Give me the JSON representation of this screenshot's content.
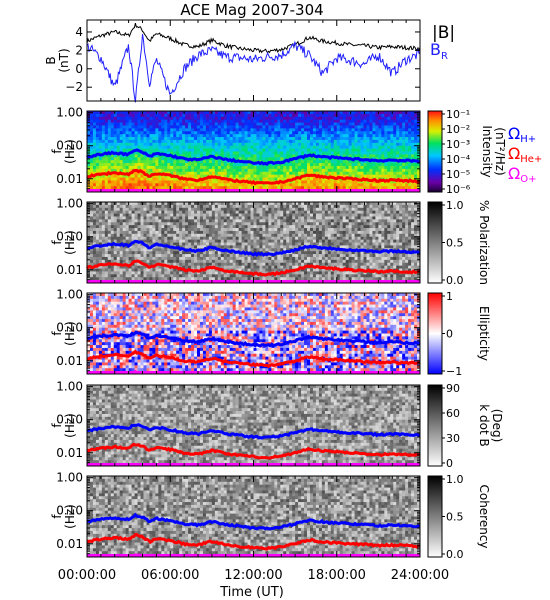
{
  "title": "ACE Mag 2007-304",
  "colors": {
    "B_total": "#000000",
    "B_R": "#2020ff",
    "H_plus": "#0000ff",
    "He_plus": "#ff0000",
    "O_plus": "#ff00ff"
  },
  "chart_data": [
    {
      "panel": "magnetic-field",
      "type": "line",
      "ylabel": "B\n(nT)",
      "y_ticks": [
        "4",
        "2",
        "0",
        "−2"
      ],
      "ylim": [
        -3.5,
        5.3
      ],
      "legend": [
        {
          "name": "|B|",
          "color": "#000000"
        },
        {
          "name": "BR",
          "color": "#2020ff"
        }
      ],
      "series": [
        {
          "name": "|B|",
          "x_hours": [
            0,
            1,
            2,
            3,
            3.5,
            4,
            4.5,
            5,
            6,
            7,
            8,
            9,
            10,
            11,
            12,
            13,
            14,
            15,
            16,
            17,
            18,
            19,
            20,
            21,
            22,
            23,
            24
          ],
          "values": [
            3.0,
            3.6,
            4.0,
            3.6,
            4.8,
            4.2,
            3.0,
            3.8,
            3.3,
            2.6,
            2.4,
            3.1,
            2.5,
            2.2,
            2.0,
            1.9,
            2.1,
            2.6,
            3.4,
            3.0,
            2.8,
            2.6,
            2.5,
            2.3,
            2.4,
            2.3,
            2.2
          ]
        },
        {
          "name": "BR",
          "x_hours": [
            0,
            1,
            2,
            3,
            3.5,
            4,
            4.5,
            5,
            6,
            7,
            8,
            9,
            10,
            11,
            12,
            13,
            14,
            15,
            16,
            17,
            18,
            19,
            20,
            21,
            22,
            23,
            24
          ],
          "values": [
            2.5,
            1.2,
            -2.0,
            2.5,
            -3.5,
            3.8,
            -1.5,
            1.0,
            -2.8,
            0.0,
            1.5,
            2.0,
            1.3,
            1.2,
            1.0,
            1.3,
            1.5,
            2.5,
            1.5,
            -0.5,
            1.2,
            0.9,
            0.5,
            1.5,
            -0.5,
            1.0,
            1.6
          ]
        }
      ]
    },
    {
      "panel": "intensity",
      "type": "heatmap",
      "ylabel": "f\n(Hz)",
      "y_ticks": [
        "1.00",
        "0.10",
        "0.01"
      ],
      "ylim_log10": [
        -2.4,
        0.05
      ],
      "colorbar": {
        "label": "Intensity\n(nT²/Hz)",
        "ticks": [
          "10⁻¹",
          "10⁻²",
          "10⁻³",
          "10⁻⁴",
          "10⁻⁵",
          "10⁻⁶"
        ],
        "scale": "rainbow"
      },
      "legend": [
        {
          "name": "ΩH+",
          "color": "#0000ff"
        },
        {
          "name": "ΩHe+",
          "color": "#ff0000"
        },
        {
          "name": "ΩO+",
          "color": "#ff00ff"
        }
      ]
    },
    {
      "panel": "polarization",
      "type": "heatmap",
      "ylabel": "f\n(Hz)",
      "y_ticks": [
        "1.00",
        "0.10",
        "0.01"
      ],
      "colorbar": {
        "label": "% Polarization",
        "ticks": [
          "1.0",
          "0.5",
          "0.0"
        ],
        "scale": "gray"
      }
    },
    {
      "panel": "ellipticity",
      "type": "heatmap",
      "ylabel": "f\n(Hz)",
      "y_ticks": [
        "1.00",
        "0.10",
        "0.01"
      ],
      "colorbar": {
        "label": "Ellipticity",
        "ticks": [
          "1",
          "0",
          "−1"
        ],
        "scale": "red-white-blue"
      }
    },
    {
      "panel": "k-dot-b",
      "type": "heatmap",
      "ylabel": "f\n(Hz)",
      "y_ticks": [
        "1.00",
        "0.10",
        "0.01"
      ],
      "colorbar": {
        "label": "k dot B\n(Deg)",
        "ticks": [
          "90",
          "60",
          "30",
          "0"
        ],
        "scale": "gray"
      }
    },
    {
      "panel": "coherency",
      "type": "heatmap",
      "ylabel": "f\n(Hz)",
      "y_ticks": [
        "1.00",
        "0.10",
        "0.01"
      ],
      "colorbar": {
        "label": "Coherency",
        "ticks": [
          "1.0",
          "0.5",
          "0.0"
        ],
        "scale": "gray"
      }
    }
  ],
  "gyrofrequency_lines": {
    "x_hours": [
      0,
      1,
      2,
      3,
      3.5,
      4,
      4.5,
      5,
      6,
      7,
      8,
      9,
      10,
      11,
      12,
      13,
      14,
      15,
      16,
      17,
      18,
      19,
      20,
      21,
      22,
      23,
      24
    ],
    "H_plus_hz": [
      0.046,
      0.055,
      0.061,
      0.055,
      0.073,
      0.064,
      0.046,
      0.058,
      0.05,
      0.04,
      0.037,
      0.047,
      0.038,
      0.034,
      0.03,
      0.029,
      0.032,
      0.04,
      0.052,
      0.046,
      0.043,
      0.04,
      0.038,
      0.035,
      0.037,
      0.035,
      0.034
    ],
    "He_plus_hz": [
      0.0115,
      0.0137,
      0.0152,
      0.0137,
      0.0183,
      0.016,
      0.0115,
      0.0145,
      0.0125,
      0.0099,
      0.0091,
      0.0118,
      0.0095,
      0.0084,
      0.0076,
      0.0072,
      0.008,
      0.0099,
      0.013,
      0.0114,
      0.0107,
      0.0099,
      0.0095,
      0.0088,
      0.0091,
      0.0088,
      0.0084
    ],
    "O_plus_hz": [
      0.0029,
      0.0034,
      0.0038,
      0.0034,
      0.0046,
      0.004,
      0.0029,
      0.0036,
      0.0031,
      0.0025,
      0.0023,
      0.003,
      0.0024,
      0.0021,
      0.0019,
      0.0018,
      0.002,
      0.0025,
      0.0032,
      0.0029,
      0.0027,
      0.0025,
      0.0024,
      0.0022,
      0.0023,
      0.0022,
      0.0021
    ]
  },
  "x_axis": {
    "label": "Time (UT)",
    "ticks": [
      "00:00:00",
      "06:00:00",
      "12:00:00",
      "18:00:00",
      "24:00:00"
    ],
    "range_hours": [
      0,
      24
    ]
  }
}
